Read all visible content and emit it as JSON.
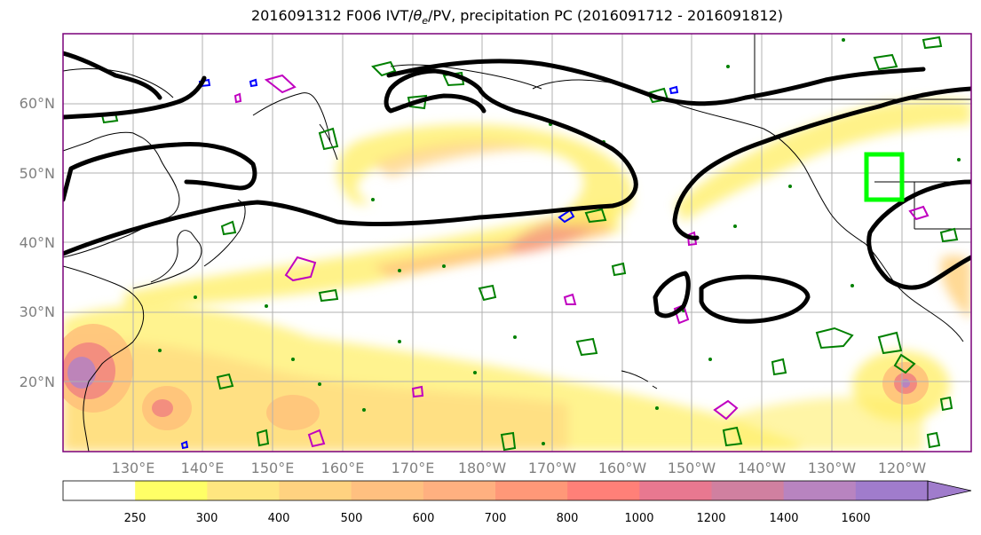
{
  "title": "2016091312 F006 IVT/θe/PV, precipitation PC (2016091712 - 2016091812)",
  "title_parts": {
    "prefix": "2016091312 F006 IVT/",
    "theta": "θ",
    "theta_sub": "e",
    "suffix": "/PV, precipitation PC (2016091712 - 2016091812)"
  },
  "map": {
    "lat_labels": [
      "60°N",
      "50°N",
      "40°N",
      "30°N",
      "20°N"
    ],
    "lon_labels": [
      "130°E",
      "140°E",
      "150°E",
      "160°E",
      "170°E",
      "180°W",
      "170°W",
      "160°W",
      "150°W",
      "140°W",
      "130°W",
      "120°W"
    ],
    "extent": {
      "lon_min": 120,
      "lon_max": 250,
      "lat_min": 10,
      "lat_max": 70
    },
    "grid": true,
    "highlight_box_color": "#00ff00"
  },
  "colorbar": {
    "ticks": [
      "250",
      "300",
      "400",
      "500",
      "600",
      "700",
      "800",
      "1000",
      "1200",
      "1400",
      "1600"
    ],
    "colors": [
      "#ffffff",
      "#ffff66",
      "#ffe680",
      "#ffd280",
      "#ffc080",
      "#ffb080",
      "#ff9878",
      "#ff8078",
      "#e87890",
      "#d080a0",
      "#b884c0",
      "#a07ccc"
    ],
    "extend": "max"
  },
  "colors": {
    "ivt_low": "#ffef6a",
    "ivt_mid": "#ffc07a",
    "ivt_high": "#f08080",
    "ivt_max": "#a07ccc",
    "theta_e_contour": "#000000",
    "pv_contour": "#008000",
    "pv_magenta": "#c000c0",
    "pv_blue": "#0000ff"
  }
}
